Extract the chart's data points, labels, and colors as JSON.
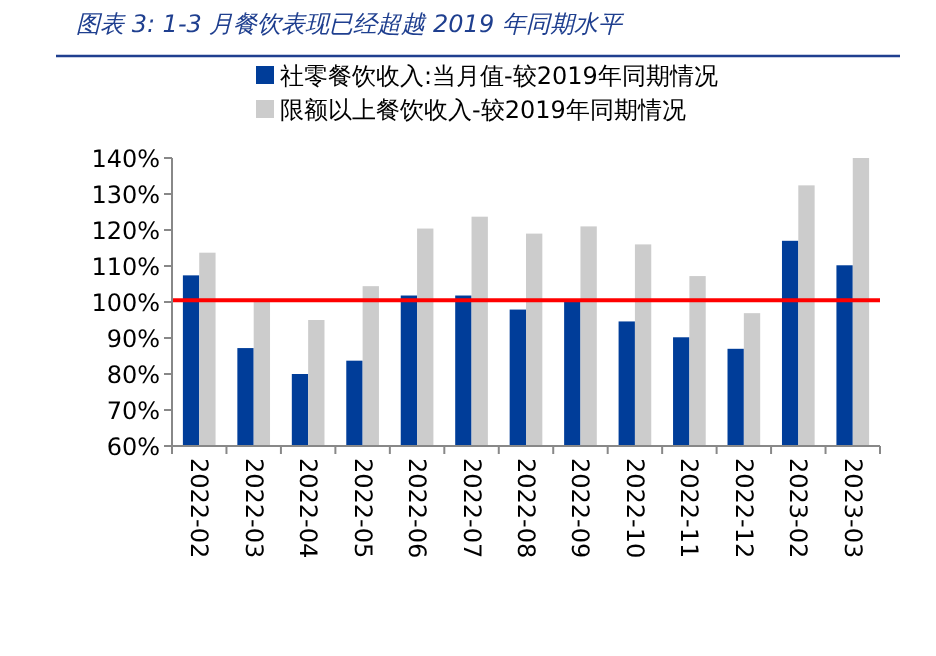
{
  "chart_data": {
    "type": "bar",
    "title": "图表 3:  1-3 月餐饮表现已经超越 2019 年同期水平",
    "categories": [
      "2022-02",
      "2022-03",
      "2022-04",
      "2022-05",
      "2022-06",
      "2022-07",
      "2022-08",
      "2022-09",
      "2022-10",
      "2022-11",
      "2022-12",
      "2023-02",
      "2023-03"
    ],
    "series": [
      {
        "name": "社零餐饮收入:当月值-较2019年同期情况",
        "color": "#003d99",
        "values": [
          107.4,
          87.2,
          80,
          83.7,
          101.8,
          101.8,
          97.9,
          100.5,
          94.6,
          90.2,
          87,
          117,
          110.2
        ]
      },
      {
        "name": "限额以上餐饮收入-较2019年同期情况",
        "color": "#cccccc",
        "values": [
          113.7,
          100.5,
          95,
          104.4,
          120.4,
          123.7,
          119,
          121,
          116,
          107.2,
          96.9,
          132.4,
          140
        ]
      }
    ],
    "ylim": [
      60,
      140
    ],
    "yticks": [
      {
        "value": 60,
        "label": "60%"
      },
      {
        "value": 70,
        "label": "70%"
      },
      {
        "value": 80,
        "label": "80%"
      },
      {
        "value": 90,
        "label": "90%"
      },
      {
        "value": 100,
        "label": "100%"
      },
      {
        "value": 110,
        "label": "110%"
      },
      {
        "value": 120,
        "label": "120%"
      },
      {
        "value": 130,
        "label": "130%"
      },
      {
        "value": 140,
        "label": "140%"
      }
    ],
    "ref_lines": [
      {
        "axis": "y",
        "value": 100.5,
        "color": "#ff0000"
      }
    ],
    "legend": "top",
    "grid": false
  }
}
